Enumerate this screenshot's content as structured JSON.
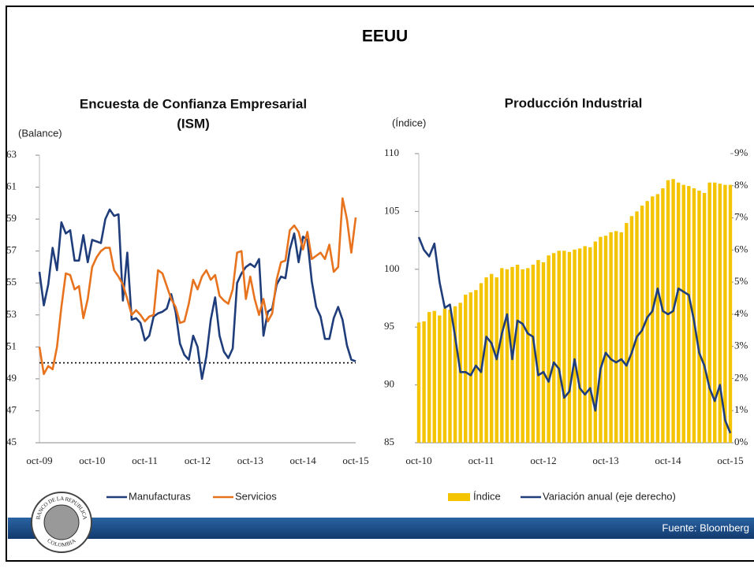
{
  "title": "EEUU",
  "source": "Fuente: Bloomberg",
  "logo": {
    "top": "BANCO DE LA REPUBLICA",
    "bottom": "COLOMBIA"
  },
  "chart_data": [
    {
      "type": "line",
      "title": [
        "Encuesta de Confianza Empresarial",
        "(ISM)"
      ],
      "y_label": "(Balance)",
      "categories": [
        "oct-09",
        null,
        null,
        null,
        null,
        null,
        null,
        null,
        null,
        null,
        null,
        null,
        "oct-10",
        null,
        null,
        null,
        null,
        null,
        null,
        null,
        null,
        null,
        null,
        null,
        "oct-11",
        null,
        null,
        null,
        null,
        null,
        null,
        null,
        null,
        null,
        null,
        null,
        "oct-12",
        null,
        null,
        null,
        null,
        null,
        null,
        null,
        null,
        null,
        null,
        null,
        "oct-13",
        null,
        null,
        null,
        null,
        null,
        null,
        null,
        null,
        null,
        null,
        null,
        "oct-14",
        null,
        null,
        null,
        null,
        null,
        null,
        null,
        null,
        null,
        null,
        null,
        "oct-15"
      ],
      "series": [
        {
          "name": "Manufacturas",
          "color": "#1f3d7a",
          "values": [
            55.7,
            53.6,
            54.9,
            57.2,
            55.8,
            58.8,
            58.1,
            58.3,
            56.4,
            56.4,
            58.0,
            56.3,
            57.7,
            57.6,
            57.5,
            59.0,
            59.6,
            59.2,
            59.3,
            53.9,
            56.9,
            52.7,
            52.8,
            52.5,
            51.4,
            51.7,
            52.9,
            53.1,
            53.2,
            53.4,
            54.3,
            53.2,
            51.2,
            50.5,
            50.2,
            51.7,
            51.0,
            49.0,
            50.4,
            52.7,
            54.1,
            51.7,
            50.7,
            50.3,
            50.9,
            55.0,
            55.6,
            56.0,
            56.2,
            56.0,
            56.5,
            51.7,
            53.2,
            53.4,
            54.9,
            55.4,
            55.3,
            57.1,
            58.1,
            56.3,
            57.9,
            57.7,
            55.1,
            53.5,
            52.9,
            51.5,
            51.5,
            52.8,
            53.5,
            52.7,
            51.1,
            50.2,
            50.1
          ]
        },
        {
          "name": "Servicios",
          "color": "#e8731e",
          "values": [
            51.0,
            49.3,
            49.8,
            49.6,
            51.0,
            53.5,
            55.6,
            55.5,
            54.6,
            54.8,
            52.8,
            54.0,
            56.0,
            56.6,
            57.0,
            57.2,
            57.2,
            55.8,
            55.4,
            54.9,
            54.0,
            53.0,
            53.3,
            53.0,
            52.6,
            52.9,
            53.0,
            55.8,
            55.6,
            54.8,
            54.0,
            53.5,
            52.5,
            52.6,
            53.7,
            55.2,
            54.6,
            55.4,
            55.8,
            55.2,
            55.5,
            54.2,
            53.9,
            53.7,
            54.6,
            56.9,
            57.0,
            54.0,
            55.4,
            54.0,
            53.0,
            54.0,
            52.6,
            53.1,
            55.2,
            56.3,
            56.4,
            58.3,
            58.6,
            58.2,
            57.1,
            58.2,
            56.5,
            56.7,
            56.9,
            56.5,
            57.4,
            55.7,
            56.0,
            60.3,
            59.0,
            56.9,
            59.1
          ]
        }
      ],
      "hline": 50,
      "ylim": [
        45,
        63
      ],
      "yticks": [
        45,
        47,
        49,
        51,
        53,
        55,
        57,
        59,
        61,
        63
      ]
    },
    {
      "type": "bar",
      "title": [
        "Producción Industrial"
      ],
      "y_label": "(Índice)",
      "categories": [
        "oct-10",
        null,
        null,
        null,
        null,
        null,
        null,
        null,
        null,
        null,
        null,
        null,
        "oct-11",
        null,
        null,
        null,
        null,
        null,
        null,
        null,
        null,
        null,
        null,
        null,
        "oct-12",
        null,
        null,
        null,
        null,
        null,
        null,
        null,
        null,
        null,
        null,
        null,
        "oct-13",
        null,
        null,
        null,
        null,
        null,
        null,
        null,
        null,
        null,
        null,
        null,
        "oct-14",
        null,
        null,
        null,
        null,
        null,
        null,
        null,
        null,
        null,
        null,
        null,
        "oct-15"
      ],
      "series": [
        {
          "name": "Índice",
          "type": "bar",
          "color": "#f5c400",
          "values": [
            95.4,
            95.5,
            96.3,
            96.4,
            96.0,
            96.6,
            96.5,
            96.8,
            97.1,
            97.8,
            98.0,
            98.2,
            98.8,
            99.3,
            99.6,
            99.3,
            100.1,
            100.0,
            100.2,
            100.4,
            100.0,
            100.1,
            100.4,
            100.8,
            100.6,
            101.2,
            101.4,
            101.6,
            101.6,
            101.5,
            101.7,
            101.8,
            102.0,
            101.9,
            102.4,
            102.8,
            102.9,
            103.2,
            103.3,
            103.2,
            104.0,
            104.6,
            105.0,
            105.5,
            105.9,
            106.3,
            106.5,
            107.0,
            107.7,
            107.8,
            107.5,
            107.3,
            107.2,
            107.0,
            106.8,
            106.6,
            107.5,
            107.5,
            107.4,
            107.3,
            107.3
          ]
        },
        {
          "name": "Variación anual (eje derecho)",
          "type": "line",
          "axis": "y2",
          "color": "#1f3d7a",
          "values": [
            6.4,
            6.0,
            5.8,
            6.2,
            5.0,
            4.2,
            4.3,
            3.3,
            2.2,
            2.2,
            2.1,
            2.4,
            2.2,
            3.3,
            3.1,
            2.6,
            3.4,
            4.0,
            2.6,
            3.8,
            3.7,
            3.4,
            3.3,
            2.1,
            2.2,
            1.9,
            2.5,
            2.3,
            1.4,
            1.6,
            2.6,
            1.7,
            1.5,
            1.7,
            1.0,
            2.3,
            2.8,
            2.6,
            2.5,
            2.6,
            2.4,
            2.8,
            3.3,
            3.5,
            3.9,
            4.1,
            4.8,
            4.1,
            4.0,
            4.1,
            4.8,
            4.7,
            4.6,
            3.8,
            2.8,
            2.4,
            1.7,
            1.3,
            1.8,
            0.7,
            0.3
          ]
        }
      ],
      "ylim": [
        85,
        110
      ],
      "yticks": [
        85,
        90,
        95,
        100,
        105,
        110
      ],
      "y2lim": [
        0,
        9
      ],
      "y2ticks": [
        {
          "value": 0,
          "label": "0%"
        },
        {
          "value": 1,
          "label": "1%"
        },
        {
          "value": 2,
          "label": "2%"
        },
        {
          "value": 3,
          "label": "3%"
        },
        {
          "value": 4,
          "label": "4%"
        },
        {
          "value": 5,
          "label": "5%"
        },
        {
          "value": 6,
          "label": "6%"
        },
        {
          "value": 7,
          "label": "7%"
        },
        {
          "value": 8,
          "label": "8%"
        },
        {
          "value": 9,
          "label": "9%"
        }
      ]
    }
  ]
}
